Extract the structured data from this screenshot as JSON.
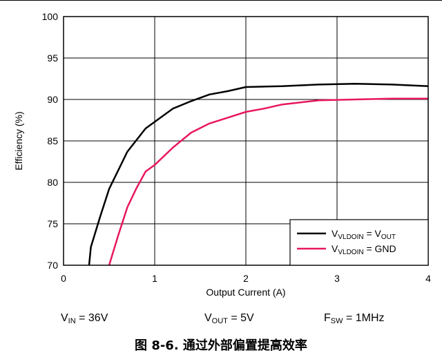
{
  "chart_data": {
    "type": "line",
    "xlabel": "Output Current (A)",
    "ylabel": "Efficiency (%)",
    "xlim": [
      0,
      4
    ],
    "ylim": [
      70,
      100
    ],
    "xticks": [
      0,
      1,
      2,
      3,
      4
    ],
    "yticks": [
      70,
      75,
      80,
      85,
      90,
      95,
      100
    ],
    "grid": true,
    "legend_position": "bottom-right",
    "series": [
      {
        "name": "V_VLDOIN = V_OUT",
        "legend_main": "V",
        "legend_sub": "VLDOIN",
        "legend_mid": " = V",
        "legend_sub2": "OUT",
        "legend_tail": "",
        "color": "#000000",
        "x": [
          0.28,
          0.3,
          0.4,
          0.5,
          0.7,
          0.9,
          1.0,
          1.2,
          1.4,
          1.6,
          1.8,
          2.0,
          2.4,
          2.8,
          3.2,
          3.6,
          4.0
        ],
        "y": [
          70.0,
          72.2,
          75.8,
          79.2,
          83.7,
          86.5,
          87.3,
          88.9,
          89.8,
          90.6,
          91.0,
          91.5,
          91.6,
          91.8,
          91.9,
          91.8,
          91.6
        ]
      },
      {
        "name": "V_VLDOIN = GND",
        "legend_main": "V",
        "legend_sub": "VLDOIN",
        "legend_mid": " = GND",
        "legend_sub2": "",
        "legend_tail": "",
        "color": "#e8175d",
        "x": [
          0.5,
          0.6,
          0.7,
          0.8,
          0.9,
          1.0,
          1.2,
          1.4,
          1.6,
          1.8,
          2.0,
          2.2,
          2.4,
          2.8,
          3.2,
          3.6,
          4.0
        ],
        "y": [
          70.0,
          73.6,
          77.0,
          79.3,
          81.3,
          82.1,
          84.2,
          86.0,
          87.1,
          87.8,
          88.5,
          88.9,
          89.4,
          89.9,
          90.0,
          90.1,
          90.1
        ]
      }
    ]
  },
  "conditions": {
    "vin": {
      "main": "V",
      "sub": "IN",
      "rest": " = 36V"
    },
    "vout": {
      "main": "V",
      "sub": "OUT",
      "rest": " = 5V"
    },
    "fsw": {
      "main": "F",
      "sub": "SW",
      "rest": " = 1MHz"
    }
  },
  "caption": "图 8-6. 通过外部偏置提高效率"
}
